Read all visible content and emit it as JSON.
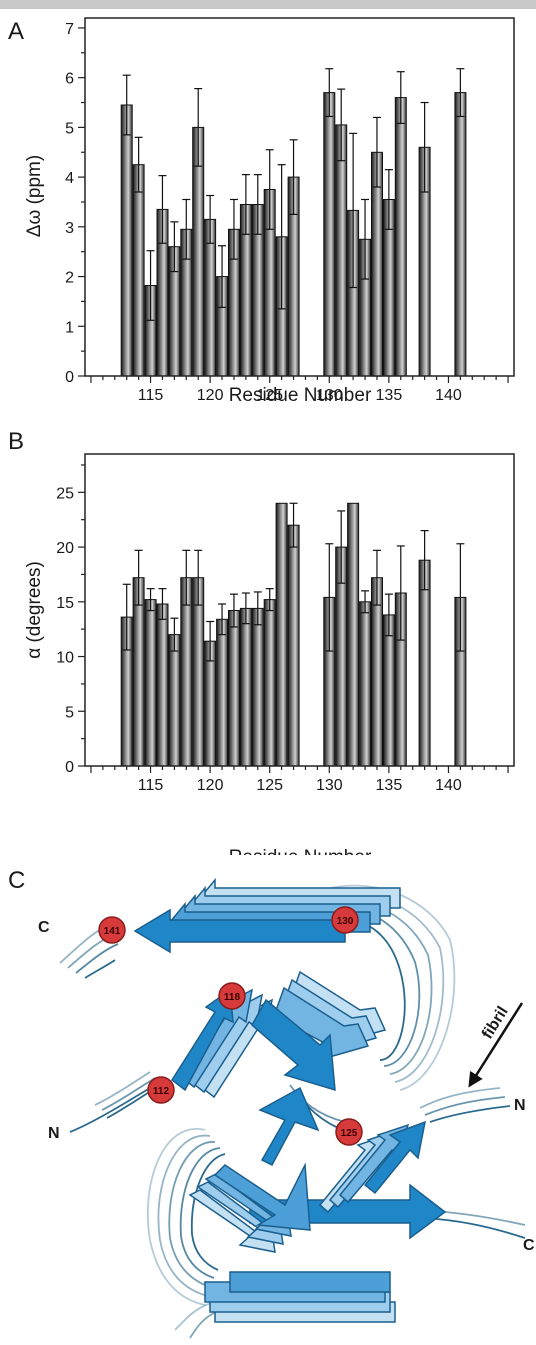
{
  "panel_a": {
    "letter": "A"
  },
  "panel_b": {
    "letter": "B"
  },
  "panel_c": {
    "letter": "C",
    "labels": {
      "c_top": "C",
      "n_left": "N",
      "n_right": "N",
      "c_bottom": "C",
      "fibril": "fibril"
    },
    "residue_markers": [
      "141",
      "130",
      "118",
      "112",
      "125"
    ],
    "strand_color_dark": "#1f86c8",
    "strand_color_light": "#a9d3ef",
    "loop_color": "#2b6a8e",
    "marker_color": "#d63a3a"
  },
  "chart_data": [
    {
      "type": "bar",
      "xlabel": "Residue Number",
      "ylabel": "Δω (ppm)",
      "xlim": [
        109.5,
        145.5
      ],
      "ylim": [
        0,
        7.2
      ],
      "xticks": [
        115,
        120,
        125,
        130,
        135,
        140
      ],
      "yticks": [
        0,
        1,
        2,
        3,
        4,
        5,
        6,
        7
      ],
      "grid": false,
      "x": [
        113,
        114,
        115,
        116,
        117,
        118,
        119,
        120,
        121,
        122,
        123,
        124,
        125,
        126,
        127,
        130,
        131,
        132,
        133,
        134,
        135,
        136,
        138,
        141
      ],
      "values": [
        5.45,
        4.25,
        1.82,
        3.35,
        2.6,
        2.95,
        5.0,
        3.15,
        2.0,
        2.95,
        3.45,
        3.45,
        3.75,
        2.8,
        4.0,
        5.7,
        5.05,
        3.33,
        2.75,
        4.5,
        3.55,
        5.6,
        4.6,
        5.7
      ],
      "errors": [
        0.6,
        0.55,
        0.7,
        0.68,
        0.5,
        0.6,
        0.78,
        0.48,
        0.62,
        0.6,
        0.6,
        0.6,
        0.8,
        1.45,
        0.75,
        0.48,
        0.72,
        1.55,
        0.8,
        0.7,
        0.6,
        0.52,
        0.9,
        0.48
      ]
    },
    {
      "type": "bar",
      "xlabel": "Residue Number",
      "ylabel": "α (degrees)",
      "xlim": [
        109.5,
        145.5
      ],
      "ylim": [
        0,
        28.5
      ],
      "xticks": [
        115,
        120,
        125,
        130,
        135,
        140
      ],
      "yticks": [
        0,
        5,
        10,
        15,
        20,
        25
      ],
      "grid": false,
      "x": [
        113,
        114,
        115,
        116,
        117,
        118,
        119,
        120,
        121,
        122,
        123,
        124,
        125,
        126,
        127,
        130,
        131,
        132,
        133,
        134,
        135,
        136,
        138,
        141
      ],
      "values": [
        13.6,
        17.2,
        15.2,
        14.8,
        12.0,
        17.2,
        17.2,
        11.4,
        13.4,
        14.2,
        14.4,
        14.4,
        15.2,
        24.0,
        22.0,
        15.4,
        20.0,
        24.0,
        15.0,
        17.2,
        13.8,
        15.8,
        18.8,
        15.4
      ],
      "errors": [
        3.0,
        2.5,
        1.0,
        1.4,
        1.5,
        2.5,
        2.5,
        1.8,
        1.4,
        1.5,
        1.4,
        1.5,
        1.0,
        0.0,
        2.0,
        4.9,
        3.3,
        0.0,
        1.0,
        2.5,
        1.9,
        4.3,
        2.7,
        4.9
      ]
    }
  ]
}
